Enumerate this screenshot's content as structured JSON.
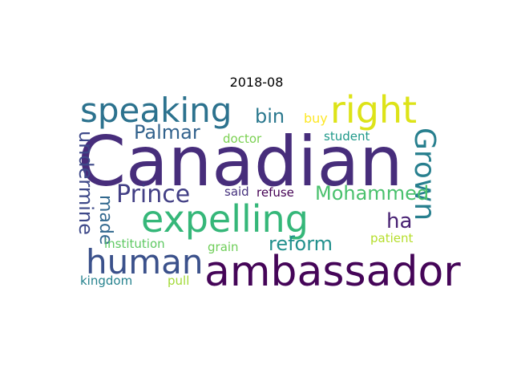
{
  "title": "2018-08",
  "chart_data": {
    "type": "wordcloud",
    "title": "2018-08",
    "colormap": "viridis",
    "words": [
      {
        "text": "Canadian",
        "weight": 100,
        "color": "#472d7b"
      },
      {
        "text": "ambassador",
        "weight": 60,
        "color": "#450558"
      },
      {
        "text": "expelling",
        "weight": 58,
        "color": "#35b779"
      },
      {
        "text": "human",
        "weight": 52,
        "color": "#3b518b"
      },
      {
        "text": "speaking",
        "weight": 52,
        "color": "#2c728e"
      },
      {
        "text": "right",
        "weight": 52,
        "color": "#dde318"
      },
      {
        "text": "Grown",
        "weight": 45,
        "color": "#277f8e"
      },
      {
        "text": "Prince",
        "weight": 38,
        "color": "#423f85"
      },
      {
        "text": "Palmar",
        "weight": 30,
        "color": "#33638d"
      },
      {
        "text": "reform",
        "weight": 30,
        "color": "#21908d"
      },
      {
        "text": "Mohammed",
        "weight": 30,
        "color": "#4ac16d"
      },
      {
        "text": "undermine",
        "weight": 30,
        "color": "#3e4989"
      },
      {
        "text": "bin",
        "weight": 30,
        "color": "#2a788e"
      },
      {
        "text": "ha",
        "weight": 30,
        "color": "#482173"
      },
      {
        "text": "made",
        "weight": 26,
        "color": "#31688e"
      },
      {
        "text": "buy",
        "weight": 18,
        "color": "#fde725"
      },
      {
        "text": "doctor",
        "weight": 17,
        "color": "#7ad151"
      },
      {
        "text": "student",
        "weight": 17,
        "color": "#1f998a"
      },
      {
        "text": "said",
        "weight": 17,
        "color": "#46327e"
      },
      {
        "text": "refuse",
        "weight": 17,
        "color": "#440154"
      },
      {
        "text": "institution",
        "weight": 17,
        "color": "#5ec962"
      },
      {
        "text": "grain",
        "weight": 17,
        "color": "#6ece58"
      },
      {
        "text": "patient",
        "weight": 17,
        "color": "#b5de2b"
      },
      {
        "text": "kingdom",
        "weight": 17,
        "color": "#26828e"
      },
      {
        "text": "pull",
        "weight": 17,
        "color": "#a2da37"
      }
    ]
  }
}
